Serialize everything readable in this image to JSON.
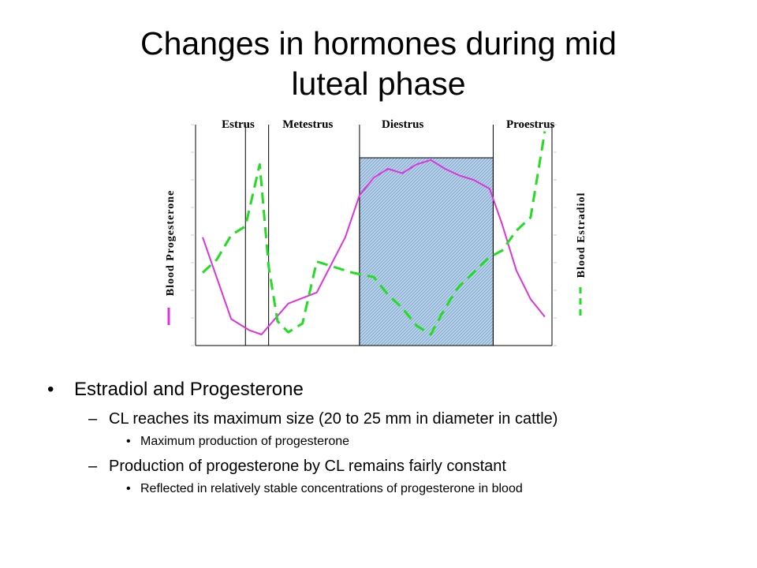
{
  "slide": {
    "title_line1": "Changes in hormones during mid",
    "title_line2": "luteal phase"
  },
  "bullets": {
    "b1": "Estradiol and Progesterone",
    "b1_1": "CL reaches its maximum size (20 to 25 mm in diameter in cattle)",
    "b1_1_1": "Maximum production of progesterone",
    "b1_2": "Production of progesterone by CL remains fairly constant",
    "b1_2_1": "Reflected in relatively stable concentrations of progesterone in blood"
  },
  "chart_data": {
    "type": "line",
    "phases": [
      "Estrus",
      "Metestrus",
      "Diestrus",
      "Proestrus"
    ],
    "highlighted_phase": "Diestrus",
    "ylabel_left": "Blood Progesterone",
    "ylabel_right": "Blood Estradiol",
    "xlim": [
      0,
      100
    ],
    "ylim": [
      0,
      100
    ],
    "phase_boundaries": [
      14,
      20.5,
      46,
      83.5
    ],
    "series": [
      {
        "name": "Blood Progesterone",
        "style": "solid",
        "color": "#dd33dd",
        "x": [
          2,
          10,
          15,
          18.5,
          26,
          34,
          42,
          46,
          50,
          54,
          58,
          62,
          66,
          70,
          74,
          78,
          82.5,
          86,
          90,
          94,
          98
        ],
        "y": [
          49,
          12,
          7,
          5,
          19,
          24,
          49,
          68,
          76,
          80,
          78,
          82,
          84,
          80,
          77,
          75,
          71,
          55,
          34,
          21,
          13
        ]
      },
      {
        "name": "Blood Estradiol",
        "style": "dashed",
        "color": "#22dd22",
        "x": [
          2,
          6,
          10,
          14,
          18,
          20.5,
          23,
          26,
          30,
          34,
          38,
          44,
          50,
          54,
          58,
          62,
          66,
          70,
          74,
          78,
          82.5,
          86,
          90,
          94,
          98
        ],
        "y": [
          33,
          39,
          50,
          54,
          82,
          36,
          11,
          6,
          10,
          38,
          36,
          33,
          31,
          23,
          17,
          9,
          5,
          17,
          27,
          33,
          40,
          43,
          52,
          58,
          97
        ]
      }
    ]
  }
}
